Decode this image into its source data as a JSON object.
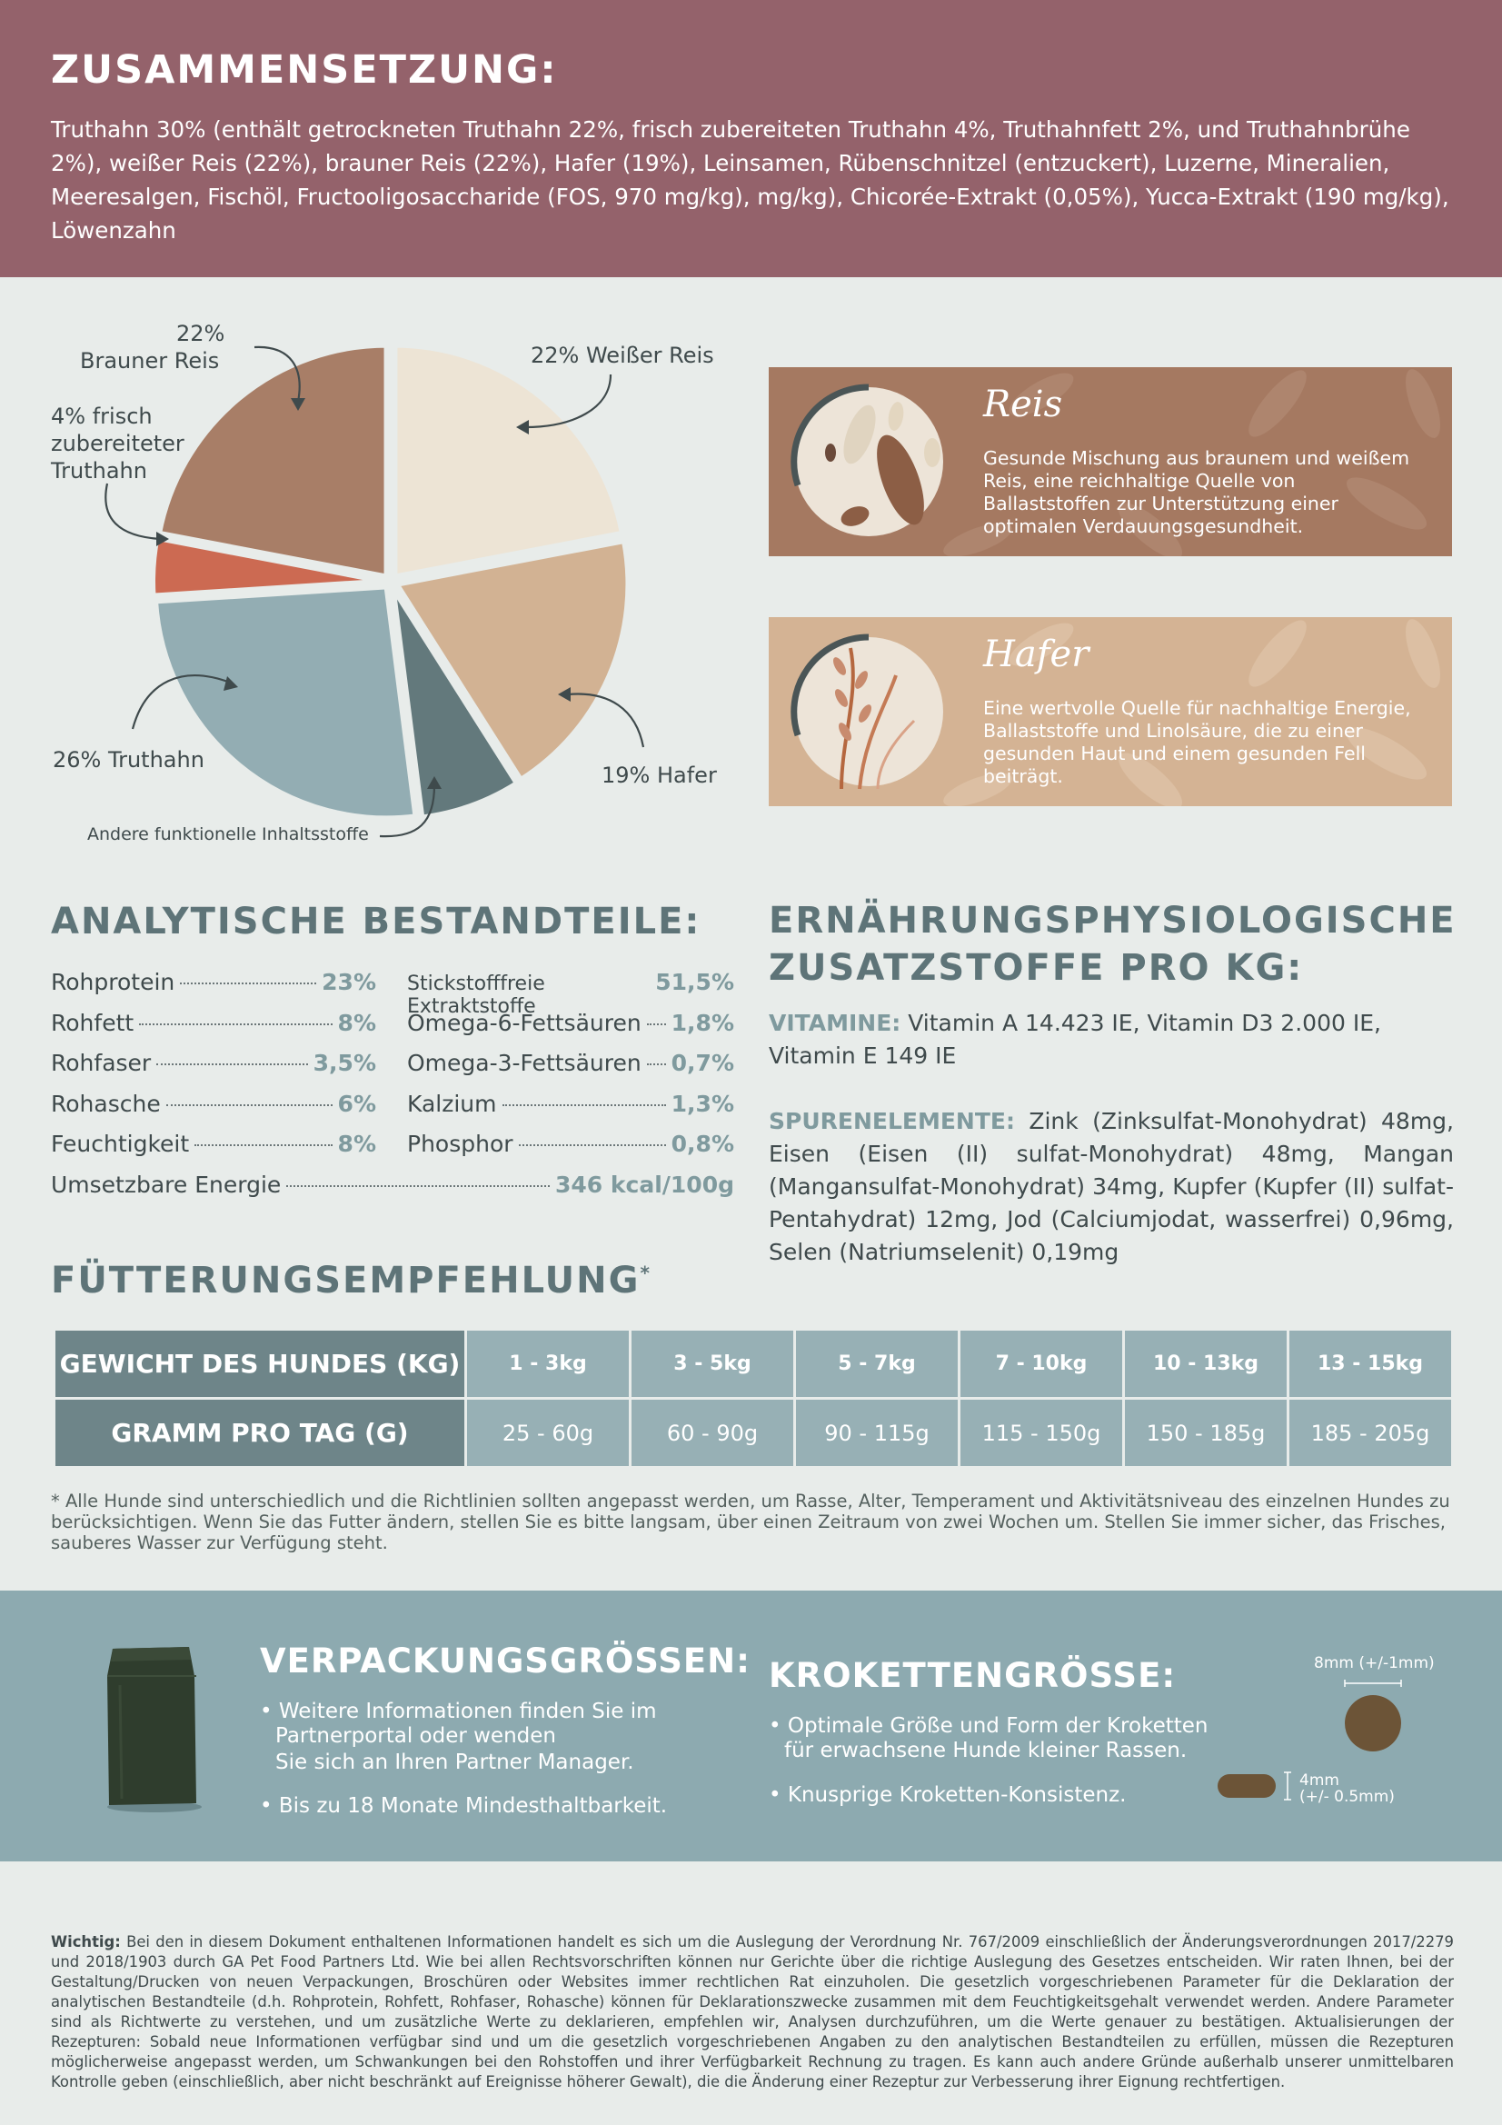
{
  "header": {
    "title": "ZUSAMMENSETZUNG:",
    "composition": "Truthahn 30% (enthält getrockneten Truthahn 22%, frisch zubereiteten Truthahn 4%, Truthahnfett 2%, und Truthahnbrühe 2%), weißer Reis (22%), brauner Reis (22%), Hafer (19%), Leinsamen, Rübenschnitzel (entzuckert), Luzerne, Mineralien, Meeresalgen, Fischöl, Fructooligosaccharide (FOS, 970 mg/kg), mg/kg), Chicorée-Extrakt (0,05%), Yucca-Extrakt (190 mg/kg), Löwenzahn"
  },
  "chart_data": {
    "type": "pie",
    "slices": [
      {
        "label": "22% Weißer Reis",
        "value": 22,
        "color": "#ede4d5"
      },
      {
        "label": "19% Hafer",
        "value": 19,
        "color": "#d2b293"
      },
      {
        "label": "Andere funktionelle Inhaltsstoffe",
        "value": 7,
        "color": "#63797c"
      },
      {
        "label": "26% Truthahn",
        "value": 26,
        "color": "#93adb3"
      },
      {
        "label": "4% frisch zubereiteter Truthahn",
        "value": 4,
        "color": "#cc6a52"
      },
      {
        "label": "22% Brauner Reis",
        "value": 22,
        "color": "#a87e67"
      }
    ]
  },
  "pie_labels": {
    "weisser_reis": "22% Weißer Reis",
    "brauner_reis_pct": "22%",
    "brauner_reis": "Brauner Reis",
    "frisch_1": "4% frisch",
    "frisch_2": "zubereiteter",
    "frisch_3": "Truthahn",
    "truthahn": "26% Truthahn",
    "hafer": "19% Hafer",
    "andere": "Andere funktionelle Inhaltsstoffe"
  },
  "cards": {
    "reis": {
      "title": "Reis",
      "text": "Gesunde Mischung aus braunem und weißem Reis, eine reichhaltige Quelle von Ballaststoffen zur Unterstützung einer optimalen Verdauungsgesundheit.",
      "color": "#a57961"
    },
    "hafer": {
      "title": "Hafer",
      "text": "Eine wertvolle Quelle für nachhaltige Energie, Ballaststoffe und Linolsäure, die zu einer gesunden Haut und einem gesunden Fell beiträgt.",
      "color": "#d4b394"
    }
  },
  "analytics": {
    "title": "ANALYTISCHE BESTANDTEILE:",
    "left": [
      {
        "name": "Rohprotein",
        "value": "23%"
      },
      {
        "name": "Rohfett",
        "value": "8%"
      },
      {
        "name": "Rohfaser",
        "value": "3,5%"
      },
      {
        "name": "Rohasche",
        "value": "6%"
      },
      {
        "name": "Feuchtigkeit",
        "value": "8%"
      }
    ],
    "right": [
      {
        "name": "Stickstofffreie Extraktstoffe",
        "value": "51,5%"
      },
      {
        "name": "Omega-6-Fettsäuren",
        "value": "1,8%"
      },
      {
        "name": "Omega-3-Fettsäuren",
        "value": "0,7%"
      },
      {
        "name": "Kalzium",
        "value": "1,3%"
      },
      {
        "name": "Phosphor",
        "value": "0,8%"
      }
    ],
    "energy": {
      "name": "Umsetzbare Energie",
      "value": "346 kcal/100g"
    }
  },
  "additives": {
    "title_1": "ERNÄHRUNGSPHYSIOLOGISCHE",
    "title_2": "ZUSATZSTOFFE PRO KG:",
    "vitamine_label": "VITAMINE:",
    "vitamine_text": "Vitamin A 14.423 IE, Vitamin D3 2.000 IE, Vitamin E 149 IE",
    "spuren_label": "SPURENELEMENTE:",
    "spuren_text": "Zink (Zinksulfat-Monohydrat) 48mg, Eisen (Eisen (II) sulfat-Monohydrat) 48mg, Mangan (Mangansulfat-Monohydrat) 34mg, Kupfer (Kupfer (II) sulfat-Pentahydrat) 12mg, Jod (Calciumjodat, wasserfrei) 0,96mg, Selen (Natriumselenit) 0,19mg"
  },
  "feeding": {
    "title": "FÜTTERUNGSEMPFEHLUNG",
    "asterisk": "*",
    "row1_head": "GEWICHT DES HUNDES (KG)",
    "row2_head": "GRAMM PRO TAG (G)",
    "weights": [
      "1 - 3kg",
      "3 - 5kg",
      "5 - 7kg",
      "7 - 10kg",
      "10 - 13kg",
      "13 - 15kg"
    ],
    "grams": [
      "25 - 60g",
      "60 - 90g",
      "90 - 115g",
      "115 - 150g",
      "150 - 185g",
      "185 - 205g"
    ],
    "note": "* Alle Hunde sind unterschiedlich und die Richtlinien sollten angepasst werden, um Rasse, Alter, Temperament und Aktivitätsniveau des einzelnen Hundes zu berücksichtigen. Wenn Sie das Futter ändern, stellen Sie es bitte langsam, über einen Zeitraum von zwei Wochen um. Stellen Sie immer sicher, das Frisches, sauberes Wasser zur Verfügung steht."
  },
  "packaging": {
    "title": "VERPACKUNGSGRÖSSEN:",
    "b1_l1": "• Weitere Informationen finden Sie im",
    "b1_l2": "Partnerportal oder wenden",
    "b1_l3": "Sie sich an Ihren Partner Manager.",
    "b2": "• Bis zu 18 Monate Mindesthaltbarkeit."
  },
  "kibble": {
    "title": "KROKETTENGRÖSSE:",
    "b1_l1": "• Optimale Größe und Form der Kroketten",
    "b1_l2": "für erwachsene Hunde kleiner Rassen.",
    "b2": "• Knusprige Kroketten-Konsistenz.",
    "diameter": "8mm (+/-1mm)",
    "height_1": "4mm",
    "height_2": "(+/- 0.5mm)"
  },
  "disclaimer": {
    "label": "Wichtig:",
    "text": "Bei den in diesem Dokument enthaltenen Informationen handelt es sich um die Auslegung der Verordnung Nr. 767/2009 einschließlich der Änderungsverordnungen 2017/2279 und 2018/1903 durch GA Pet Food Partners Ltd. Wie bei allen Rechtsvorschriften können nur Gerichte über die richtige Auslegung des Gesetzes entscheiden. Wir raten Ihnen, bei der Gestaltung/Drucken von neuen Verpackungen, Broschüren oder Websites immer rechtlichen Rat einzuholen. Die gesetzlich vorgeschriebenen Parameter für die Deklaration der analytischen Bestandteile (d.h. Rohprotein, Rohfett, Rohfaser, Rohasche) können für Deklarationszwecke zusammen mit dem Feuchtigkeitsgehalt verwendet werden. Andere Parameter sind als Richtwerte zu verstehen, und um zusätzliche Werte zu deklarieren, empfehlen wir, Analysen durchzuführen, um die Werte genauer zu bestätigen. Aktualisierungen der Rezepturen: Sobald neue Informationen verfügbar sind und um die gesetzlich vorgeschriebenen Angaben zu den analytischen Bestandteilen zu erfüllen, müssen die Rezepturen möglicherweise angepasst werden, um Schwankungen bei den Rohstoffen und ihrer Verfügbarkeit Rechnung zu tragen. Es kann auch andere Gründe außerhalb unserer unmittelbaren Kontrolle geben (einschließlich, aber nicht beschränkt auf Ereignisse höherer Gewalt), die die Änderung einer Rezeptur zur Verbesserung ihrer Eignung rechtfertigen."
  }
}
